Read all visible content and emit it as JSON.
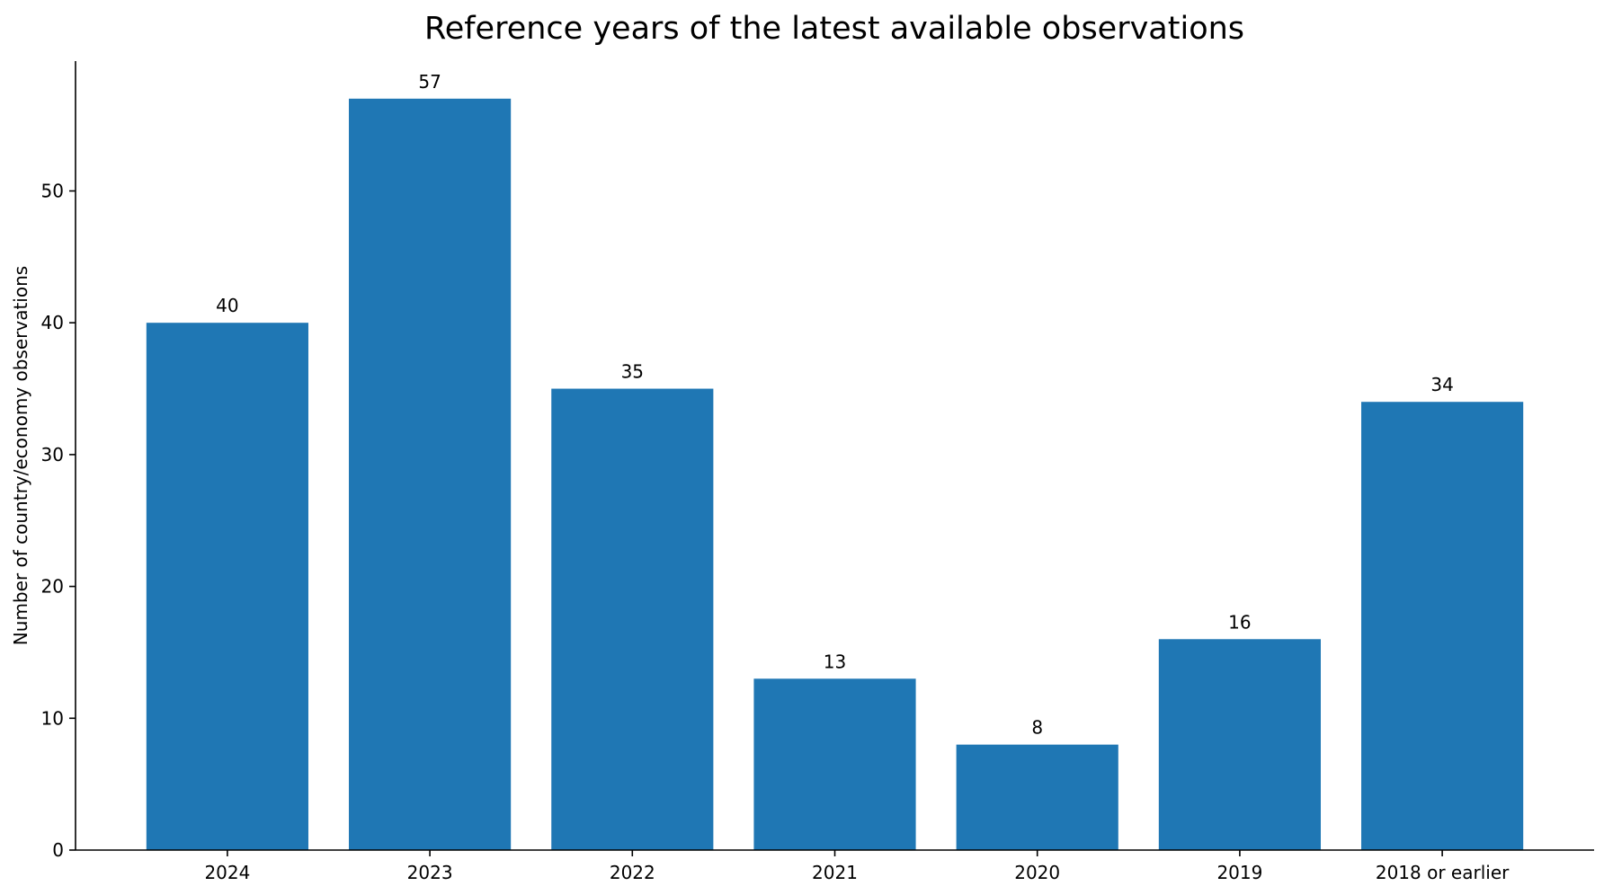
{
  "chart_data": {
    "type": "bar",
    "title": "Reference years of the latest available observations",
    "xlabel": "",
    "ylabel": "Number of country/economy observations",
    "categories": [
      "2024",
      "2023",
      "2022",
      "2021",
      "2020",
      "2019",
      "2018 or earlier"
    ],
    "values": [
      40,
      57,
      35,
      13,
      8,
      16,
      34
    ],
    "ylim": [
      0,
      59.85
    ],
    "yticks": [
      0,
      10,
      20,
      30,
      40,
      50
    ],
    "bar_color": "#1f77b4",
    "grid": false,
    "legend": "none",
    "data_labels": true
  }
}
